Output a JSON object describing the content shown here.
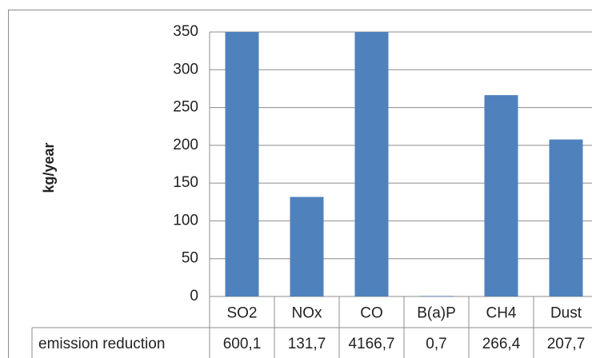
{
  "chart_data": {
    "type": "bar",
    "y_label": "kg/year",
    "categories": [
      "SO2",
      "NOx",
      "CO",
      "B(a)P",
      "CH4",
      "Dust"
    ],
    "series": [
      {
        "name": "emission reduction",
        "color": "#4f81bd",
        "values": [
          600.1,
          131.7,
          4166.7,
          0.7,
          266.4,
          207.7
        ],
        "value_labels": [
          "600,1",
          "131,7",
          "4166,7",
          "0,7",
          "266,4",
          "207,7"
        ]
      }
    ],
    "ylim": [
      0,
      350
    ],
    "yticks": [
      0,
      50,
      100,
      150,
      200,
      250,
      300,
      350
    ],
    "grid": true
  }
}
